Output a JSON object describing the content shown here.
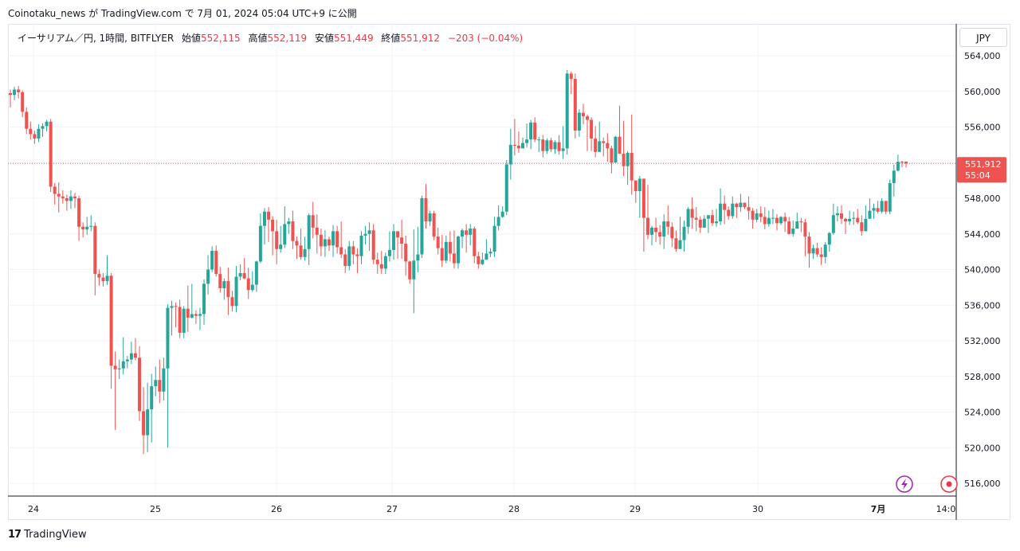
{
  "caption": "Coinotaku_news が TradingView.com で 7月 01, 2024 05:04 UTC+9 に公開",
  "legend": {
    "symbol": "イーサリアム／円, 1時間, BITFLYER",
    "open_label": "始値",
    "open": "552,115",
    "high_label": "高値",
    "high": "552,119",
    "low_label": "安値",
    "low": "551,449",
    "close_label": "終値",
    "close": "551,912",
    "change": "−203 (−0.04%)"
  },
  "unit_button": "JPY",
  "price_label": {
    "price": "551,912",
    "countdown": "55:04"
  },
  "watermark": {
    "logo": "17",
    "text": "TradingView"
  },
  "colors": {
    "up": "#26a69a",
    "down": "#ef5350",
    "grid": "#f0f3fa",
    "price_line": "#ef5350",
    "alert": "#9c27b0",
    "record": "#f23645"
  },
  "icons": [
    "lightning-icon",
    "record-icon"
  ],
  "chart_data": {
    "type": "candlestick",
    "ylim": [
      514000,
      566000
    ],
    "y_ticks": [
      "564,000",
      "560,000",
      "556,000",
      "552,000",
      "548,000",
      "544,000",
      "540,000",
      "536,000",
      "532,000",
      "528,000",
      "524,000",
      "520,000",
      "516,000"
    ],
    "y_tick_values": [
      564000,
      560000,
      556000,
      552000,
      548000,
      544000,
      540000,
      536000,
      532000,
      528000,
      524000,
      520000,
      516000
    ],
    "x_ticks": [
      "24",
      "25",
      "26",
      "27",
      "28",
      "29",
      "30",
      "7月",
      "14:0"
    ],
    "last_price": 551912,
    "candles": [
      [
        559800,
        559600,
        560200,
        558200
      ],
      [
        559600,
        560200,
        560500,
        559000
      ],
      [
        560200,
        559900,
        560600,
        559200
      ],
      [
        559900,
        557700,
        560100,
        557100
      ],
      [
        557700,
        555800,
        558200,
        555200
      ],
      [
        555800,
        555200,
        556600,
        554600
      ],
      [
        555200,
        554700,
        555600,
        554100
      ],
      [
        554700,
        555800,
        556300,
        554300
      ],
      [
        555800,
        556100,
        556400,
        554900
      ],
      [
        556100,
        556600,
        556800,
        555500
      ],
      [
        556600,
        549300,
        556900,
        548700
      ],
      [
        549300,
        548500,
        549700,
        547300
      ],
      [
        548500,
        548200,
        549800,
        546400
      ],
      [
        548200,
        548000,
        548900,
        547400
      ],
      [
        548000,
        547700,
        548400,
        546600
      ],
      [
        547700,
        548200,
        548900,
        546800
      ],
      [
        548200,
        548000,
        548600,
        546900
      ],
      [
        548000,
        544800,
        548300,
        543200
      ],
      [
        544800,
        544500,
        545300,
        543600
      ],
      [
        544500,
        544800,
        545900,
        543900
      ],
      [
        544800,
        544900,
        546100,
        544300
      ],
      [
        544900,
        539500,
        545300,
        537100
      ],
      [
        539500,
        539100,
        540000,
        538200
      ],
      [
        539100,
        538700,
        539600,
        538100
      ],
      [
        538700,
        539300,
        541600,
        538300
      ],
      [
        539300,
        529200,
        539600,
        526600
      ],
      [
        529200,
        528800,
        530800,
        522000
      ],
      [
        528800,
        528900,
        529900,
        527700
      ],
      [
        528900,
        529700,
        532400,
        528200
      ],
      [
        529700,
        529900,
        530300,
        528900
      ],
      [
        529900,
        530600,
        531900,
        529400
      ],
      [
        530600,
        530100,
        532300,
        529800
      ],
      [
        530100,
        524100,
        531400,
        523000
      ],
      [
        524100,
        521400,
        526800,
        519300
      ],
      [
        521400,
        524300,
        527300,
        519500
      ],
      [
        524300,
        526900,
        528300,
        520600
      ],
      [
        526900,
        527600,
        529100,
        525800
      ],
      [
        527600,
        526300,
        529900,
        525000
      ],
      [
        526300,
        528900,
        530100,
        525300
      ],
      [
        528900,
        535700,
        536100,
        520000
      ],
      [
        535700,
        535900,
        536500,
        532600
      ],
      [
        535900,
        535800,
        536300,
        533500
      ],
      [
        535800,
        532900,
        536600,
        532300
      ],
      [
        532900,
        535600,
        535900,
        532300
      ],
      [
        535600,
        534600,
        538200,
        533000
      ],
      [
        534600,
        535000,
        538400,
        534500
      ],
      [
        535000,
        534800,
        535400,
        533900
      ],
      [
        534800,
        535000,
        535700,
        533200
      ],
      [
        535000,
        538400,
        538900,
        533800
      ],
      [
        538400,
        540000,
        541600,
        537200
      ],
      [
        540000,
        542100,
        542600,
        539700
      ],
      [
        542100,
        539500,
        542700,
        539200
      ],
      [
        539500,
        537900,
        540300,
        537400
      ],
      [
        537900,
        538700,
        539000,
        536600
      ],
      [
        538700,
        536900,
        540200,
        534900
      ],
      [
        536900,
        535900,
        537600,
        535300
      ],
      [
        535900,
        539200,
        540400,
        535200
      ],
      [
        539200,
        539600,
        540600,
        538800
      ],
      [
        539600,
        539000,
        541300,
        538900
      ],
      [
        539000,
        537700,
        540200,
        536700
      ],
      [
        537700,
        538300,
        539800,
        537500
      ],
      [
        538300,
        540900,
        541000,
        537500
      ],
      [
        540900,
        544900,
        546300,
        540700
      ],
      [
        544900,
        546500,
        546900,
        542800
      ],
      [
        546500,
        545600,
        547000,
        543100
      ],
      [
        545600,
        544300,
        546000,
        541600
      ],
      [
        544300,
        542300,
        545600,
        540600
      ],
      [
        542300,
        542800,
        544900,
        541900
      ],
      [
        542800,
        545100,
        547100,
        542400
      ],
      [
        545100,
        545400,
        545800,
        544000
      ],
      [
        545400,
        543200,
        546600,
        542300
      ],
      [
        543200,
        542700,
        543700,
        541200
      ],
      [
        542700,
        541400,
        544600,
        541100
      ],
      [
        541400,
        542300,
        543700,
        541000
      ],
      [
        542300,
        546100,
        546300,
        540500
      ],
      [
        546100,
        544700,
        547600,
        543500
      ],
      [
        544700,
        543900,
        546200,
        541800
      ],
      [
        543900,
        542600,
        544600,
        541500
      ],
      [
        542600,
        543400,
        544400,
        541400
      ],
      [
        543400,
        542700,
        543700,
        542100
      ],
      [
        542700,
        544300,
        545000,
        541400
      ],
      [
        544300,
        542500,
        544900,
        541800
      ],
      [
        542500,
        541700,
        545400,
        541300
      ],
      [
        541700,
        540400,
        542300,
        539600
      ],
      [
        540400,
        542600,
        543200,
        539900
      ],
      [
        542600,
        541700,
        543200,
        540600
      ],
      [
        541700,
        541500,
        542400,
        539600
      ],
      [
        541500,
        543800,
        544300,
        540600
      ],
      [
        543800,
        544000,
        544900,
        542800
      ],
      [
        544000,
        544400,
        545300,
        542100
      ],
      [
        544400,
        541100,
        545100,
        540600
      ],
      [
        541100,
        540600,
        541900,
        539500
      ],
      [
        540600,
        540100,
        542100,
        539500
      ],
      [
        540100,
        541500,
        541900,
        539500
      ],
      [
        541500,
        542200,
        544300,
        540900
      ],
      [
        542200,
        544300,
        545100,
        541100
      ],
      [
        544300,
        543600,
        544300,
        541200
      ],
      [
        543600,
        542900,
        545600,
        541200
      ],
      [
        542900,
        540900,
        543800,
        539300
      ],
      [
        540900,
        538900,
        541000,
        538400
      ],
      [
        538900,
        541000,
        544500,
        535100
      ],
      [
        541000,
        541700,
        544800,
        539700
      ],
      [
        541700,
        548000,
        548300,
        541300
      ],
      [
        548000,
        545400,
        549600,
        544600
      ],
      [
        545400,
        546300,
        546600,
        544900
      ],
      [
        546300,
        543700,
        546600,
        543300
      ],
      [
        543700,
        542400,
        544700,
        541700
      ],
      [
        542400,
        541000,
        543900,
        540300
      ],
      [
        541000,
        543100,
        543800,
        540700
      ],
      [
        543100,
        541800,
        544300,
        540900
      ],
      [
        541800,
        540700,
        544400,
        540100
      ],
      [
        540700,
        543700,
        543800,
        540100
      ],
      [
        543700,
        544400,
        544600,
        542400
      ],
      [
        544400,
        543900,
        545100,
        541900
      ],
      [
        543900,
        544600,
        545100,
        542700
      ],
      [
        544600,
        541500,
        544800,
        540700
      ],
      [
        541500,
        540600,
        542000,
        540100
      ],
      [
        540600,
        541100,
        541900,
        540500
      ],
      [
        541100,
        541800,
        543400,
        541200
      ],
      [
        541800,
        542000,
        542400,
        541400
      ],
      [
        542000,
        544900,
        545900,
        541400
      ],
      [
        544900,
        545900,
        547200,
        544400
      ],
      [
        545900,
        546500,
        547100,
        545800
      ],
      [
        546500,
        551800,
        552300,
        546100
      ],
      [
        551800,
        554000,
        555800,
        550100
      ],
      [
        554000,
        553900,
        556900,
        552800
      ],
      [
        553900,
        553600,
        555500,
        553100
      ],
      [
        553600,
        554200,
        554800,
        553600
      ],
      [
        554200,
        554600,
        556400,
        553700
      ],
      [
        554600,
        556500,
        556800,
        553500
      ],
      [
        556500,
        554600,
        557100,
        554300
      ],
      [
        554600,
        554600,
        554900,
        553200
      ],
      [
        554600,
        553300,
        555100,
        552600
      ],
      [
        553300,
        554500,
        554700,
        553000
      ],
      [
        554500,
        553500,
        554800,
        553200
      ],
      [
        553500,
        554300,
        554500,
        553000
      ],
      [
        554300,
        553300,
        555100,
        552900
      ],
      [
        553300,
        553600,
        556100,
        552400
      ],
      [
        553600,
        562000,
        562400,
        552900
      ],
      [
        562000,
        561400,
        562200,
        559700
      ],
      [
        561400,
        555600,
        562000,
        554700
      ],
      [
        555600,
        557600,
        558000,
        554900
      ],
      [
        557600,
        557200,
        558600,
        556300
      ],
      [
        557200,
        556800,
        557400,
        553300
      ],
      [
        556800,
        554700,
        557100,
        553300
      ],
      [
        554700,
        553200,
        556100,
        552600
      ],
      [
        553200,
        554400,
        556600,
        553400
      ],
      [
        554400,
        554200,
        554800,
        552700
      ],
      [
        554200,
        553600,
        555300,
        552100
      ],
      [
        553600,
        552000,
        553900,
        550800
      ],
      [
        552000,
        554900,
        555000,
        552100
      ],
      [
        554900,
        553000,
        558400,
        553000
      ],
      [
        553000,
        551600,
        556700,
        550500
      ],
      [
        551600,
        553100,
        553300,
        549500
      ],
      [
        553100,
        550000,
        557400,
        548400
      ],
      [
        550000,
        548800,
        549400,
        547500
      ],
      [
        548800,
        550200,
        550500,
        545800
      ],
      [
        550200,
        545800,
        550200,
        542000
      ],
      [
        545800,
        543900,
        549500,
        543400
      ],
      [
        543900,
        544700,
        544900,
        542700
      ],
      [
        544700,
        544200,
        545800,
        543100
      ],
      [
        544200,
        543700,
        545000,
        542800
      ],
      [
        543700,
        545400,
        546200,
        542300
      ],
      [
        545400,
        544800,
        547200,
        543900
      ],
      [
        544800,
        543500,
        545300,
        542500
      ],
      [
        543500,
        542300,
        544400,
        542000
      ],
      [
        542300,
        543300,
        545900,
        542500
      ],
      [
        543300,
        544800,
        545500,
        542000
      ],
      [
        544800,
        546800,
        547000,
        544000
      ],
      [
        546800,
        545800,
        548100,
        544600
      ],
      [
        545800,
        545600,
        547000,
        544300
      ],
      [
        545600,
        544700,
        546000,
        544100
      ],
      [
        544700,
        545700,
        546100,
        544700
      ],
      [
        545700,
        546100,
        546100,
        544100
      ],
      [
        546100,
        545200,
        546700,
        544900
      ],
      [
        545200,
        545400,
        546800,
        544800
      ],
      [
        545400,
        547400,
        549100,
        545000
      ],
      [
        547400,
        546700,
        548300,
        545100
      ],
      [
        546700,
        546000,
        547100,
        545600
      ],
      [
        546000,
        547400,
        548200,
        545700
      ],
      [
        547400,
        547000,
        547500,
        545800
      ],
      [
        547000,
        547500,
        548500,
        546500
      ],
      [
        547500,
        547000,
        547500,
        546800
      ],
      [
        547000,
        546600,
        548200,
        545600
      ],
      [
        546600,
        545600,
        546900,
        544600
      ],
      [
        545600,
        546300,
        546800,
        545300
      ],
      [
        546300,
        545900,
        547100,
        545300
      ],
      [
        545900,
        545100,
        547000,
        544500
      ],
      [
        545100,
        545800,
        546600,
        544800
      ],
      [
        545800,
        545800,
        546800,
        545100
      ],
      [
        545800,
        545200,
        546200,
        544400
      ],
      [
        545200,
        545900,
        546000,
        545000
      ],
      [
        545900,
        545400,
        546400,
        544200
      ],
      [
        545400,
        544000,
        545900,
        543900
      ],
      [
        544000,
        544600,
        545500,
        543700
      ],
      [
        544600,
        545400,
        546400,
        544600
      ],
      [
        545400,
        545300,
        545800,
        544200
      ],
      [
        545300,
        543700,
        545700,
        541500
      ],
      [
        543700,
        541800,
        544200,
        540200
      ],
      [
        541800,
        542400,
        542800,
        541200
      ],
      [
        542400,
        541700,
        543000,
        541400
      ],
      [
        541700,
        541400,
        542500,
        540500
      ],
      [
        541400,
        542800,
        543100,
        540700
      ],
      [
        542800,
        544100,
        544200,
        542000
      ],
      [
        544100,
        546100,
        547400,
        543900
      ],
      [
        546100,
        546300,
        547100,
        545400
      ],
      [
        546300,
        545700,
        547200,
        545100
      ],
      [
        545700,
        545400,
        545800,
        544000
      ],
      [
        545400,
        545700,
        546600,
        545000
      ],
      [
        545700,
        545800,
        546500,
        545000
      ],
      [
        545800,
        545300,
        546800,
        545100
      ],
      [
        545300,
        544300,
        546100,
        543800
      ],
      [
        544300,
        545700,
        547200,
        545600
      ],
      [
        545700,
        546600,
        548000,
        545700
      ],
      [
        546600,
        546900,
        547400,
        545700
      ],
      [
        546900,
        546500,
        547700,
        546300
      ],
      [
        546500,
        547700,
        548000,
        546300
      ],
      [
        547700,
        546500,
        547600,
        546200
      ],
      [
        546500,
        549700,
        550100,
        546200
      ],
      [
        549700,
        551100,
        551800,
        548200
      ],
      [
        551100,
        552100,
        552900,
        551000
      ],
      [
        552100,
        552000,
        552200,
        551500
      ],
      [
        552115,
        551912,
        552119,
        551449
      ]
    ]
  }
}
